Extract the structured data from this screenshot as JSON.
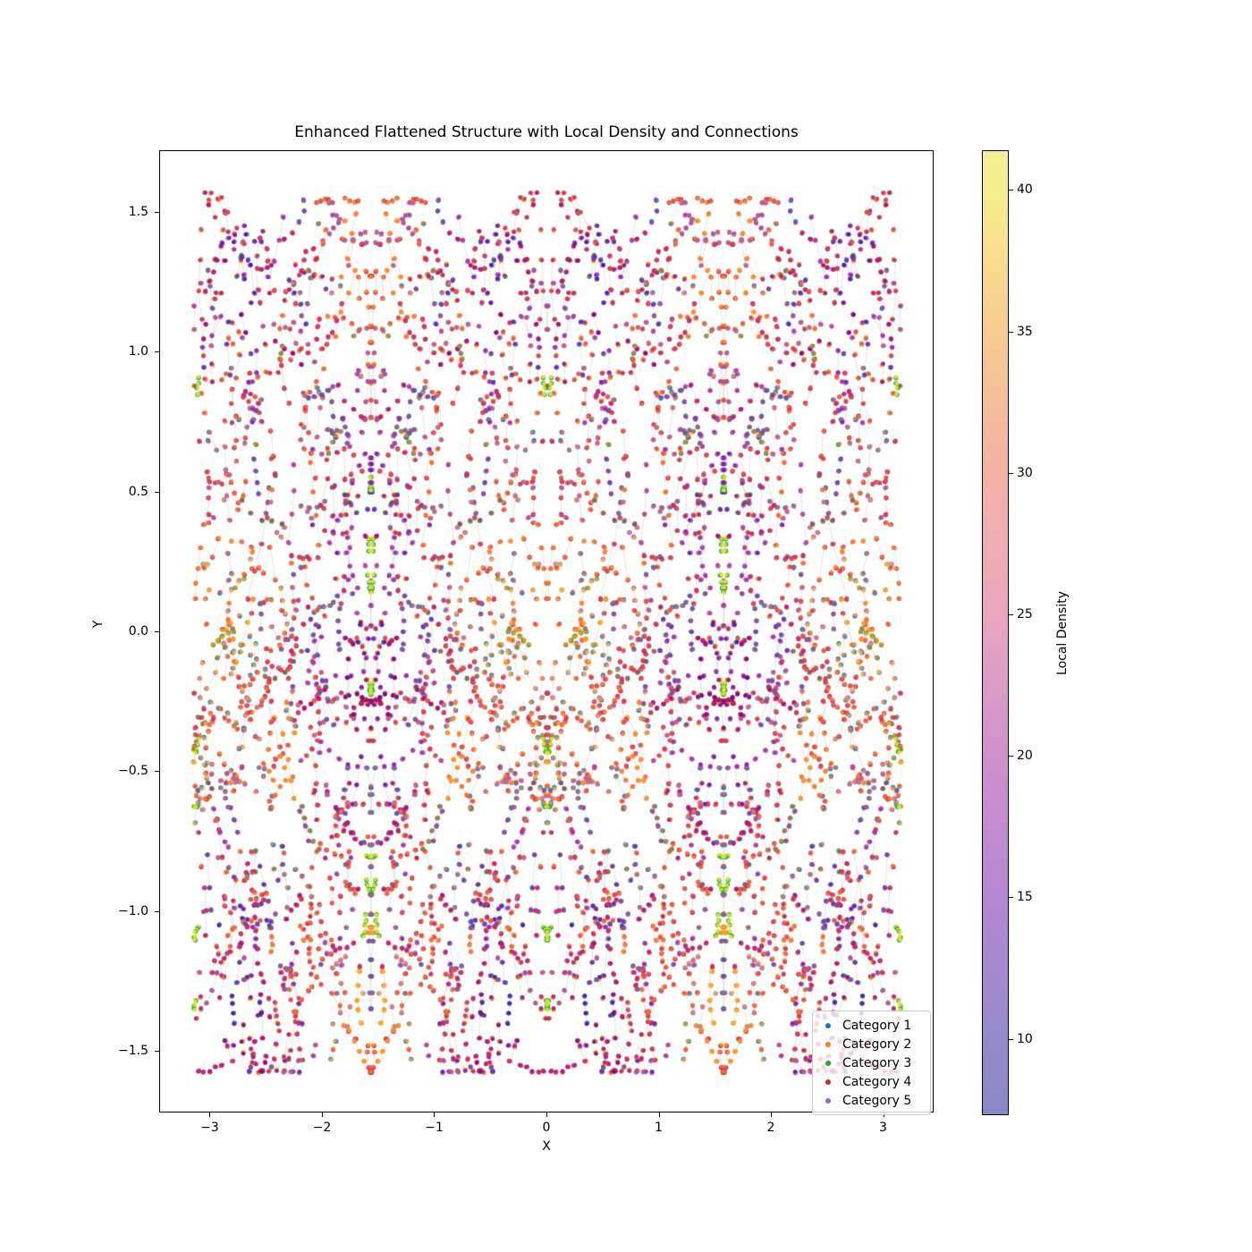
{
  "chart_data": {
    "type": "scatter",
    "title": "Enhanced Flattened Structure with Local Density and Connections",
    "xlabel": "X",
    "ylabel": "Y",
    "xlim": [
      -3.45,
      3.45
    ],
    "ylim": [
      -1.72,
      1.72
    ],
    "x_ticks": [
      -3,
      -2,
      -1,
      0,
      1,
      2,
      3
    ],
    "x_tick_labels": [
      "−3",
      "−2",
      "−1",
      "0",
      "1",
      "2",
      "3"
    ],
    "y_ticks": [
      1.5,
      1.0,
      0.5,
      0.0,
      -0.5,
      -1.0,
      -1.5
    ],
    "y_tick_labels": [
      "1.5",
      "1.0",
      "0.5",
      "0.0",
      "−0.5",
      "−1.0",
      "−1.5"
    ],
    "grid": false,
    "n_points_estimate": 6000,
    "data_domain": {
      "x": [
        -3.14159,
        3.14159
      ],
      "y": [
        -1.5708,
        1.5708
      ]
    },
    "pattern_description": "dense flattened point lattice, mirror-symmetric about x=0 and x=±π/2; short chains and pairs of dots linked by faint gray connection lines; points colored by local density (plasma colormap, semi-transparent) layered over category colors",
    "colorbar": {
      "label": "Local Density",
      "ticks": [
        10,
        15,
        20,
        25,
        30,
        35,
        40
      ],
      "vmin": 7.3,
      "vmax": 41.4,
      "gradient_stops": [
        {
          "pos": 0.0,
          "color": "#f3f194"
        },
        {
          "pos": 0.041,
          "color": "#f5ee8e"
        },
        {
          "pos": 0.188,
          "color": "#f7cb90"
        },
        {
          "pos": 0.334,
          "color": "#f3b2a6"
        },
        {
          "pos": 0.481,
          "color": "#e8a6bf"
        },
        {
          "pos": 0.627,
          "color": "#cf92cb"
        },
        {
          "pos": 0.774,
          "color": "#b388d2"
        },
        {
          "pos": 0.921,
          "color": "#968bca"
        },
        {
          "pos": 1.0,
          "color": "#8a87c6"
        }
      ]
    },
    "legend": {
      "position": "lower right",
      "items": [
        {
          "label": "Category 1",
          "color": "#1f77b4"
        },
        {
          "label": "Category 2",
          "color": "#ff7f0e"
        },
        {
          "label": "Category 3",
          "color": "#2ca02c"
        },
        {
          "label": "Category 4",
          "color": "#d62728"
        },
        {
          "label": "Category 5",
          "color": "#9467bd"
        }
      ]
    },
    "connection_line_color": "#a0a0a0",
    "plasma_anchors": [
      "#0d0887",
      "#46039f",
      "#7201a8",
      "#9c179e",
      "#bd3786",
      "#d8576b",
      "#ed7953",
      "#fa9e3b",
      "#fdc926",
      "#f6ed37",
      "#f0f921"
    ],
    "render_hints": {
      "seed": 420042,
      "chains": 545,
      "mirror_copies": 4,
      "dot_radius_px": 2.4,
      "halo_radius_px": 2.7,
      "dot_alpha": 0.78,
      "halo_alpha": 0.9,
      "line_alpha": 0.32,
      "category_weights": [
        0.22,
        0.22,
        0.04,
        0.33,
        0.19
      ],
      "special_cluster_prob": 0.022
    }
  }
}
